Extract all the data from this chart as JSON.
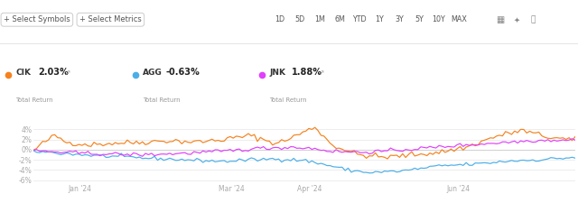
{
  "background_color": "#ffffff",
  "grid_color": "#e8e8e8",
  "ylim": [
    -6.5,
    5.5
  ],
  "yticks": [
    -6,
    -4,
    -2,
    0,
    2,
    4
  ],
  "ytick_labels": [
    "-6%",
    "-4%",
    "-2%",
    "0%",
    "2%",
    "4%"
  ],
  "xtick_labels": [
    "Jan '24",
    "Mar '24",
    "Apr '24",
    "Jun '24"
  ],
  "xtick_positions": [
    0.085,
    0.365,
    0.51,
    0.785
  ],
  "series": {
    "CIK": {
      "color": "#f5821e",
      "return": "2.03%"
    },
    "AGG": {
      "color": "#4baee8",
      "return": "-0.63%"
    },
    "JNK": {
      "color": "#e040fb",
      "return": "1.88%"
    }
  },
  "legend_items": [
    {
      "symbol": "CIK",
      "color": "#f5821e",
      "pct": "2.03%"
    },
    {
      "symbol": "AGG",
      "color": "#4baee8",
      "pct": "-0.63%"
    },
    {
      "symbol": "JNK",
      "color": "#e040fb",
      "pct": "1.88%"
    }
  ],
  "btn1": "+ Select Symbols",
  "btn2": "+ Select Metrics",
  "time_buttons": [
    "1D",
    "5D",
    "1M",
    "6M",
    "YTD",
    "1Y",
    "3Y",
    "5Y",
    "10Y",
    "MAX"
  ]
}
